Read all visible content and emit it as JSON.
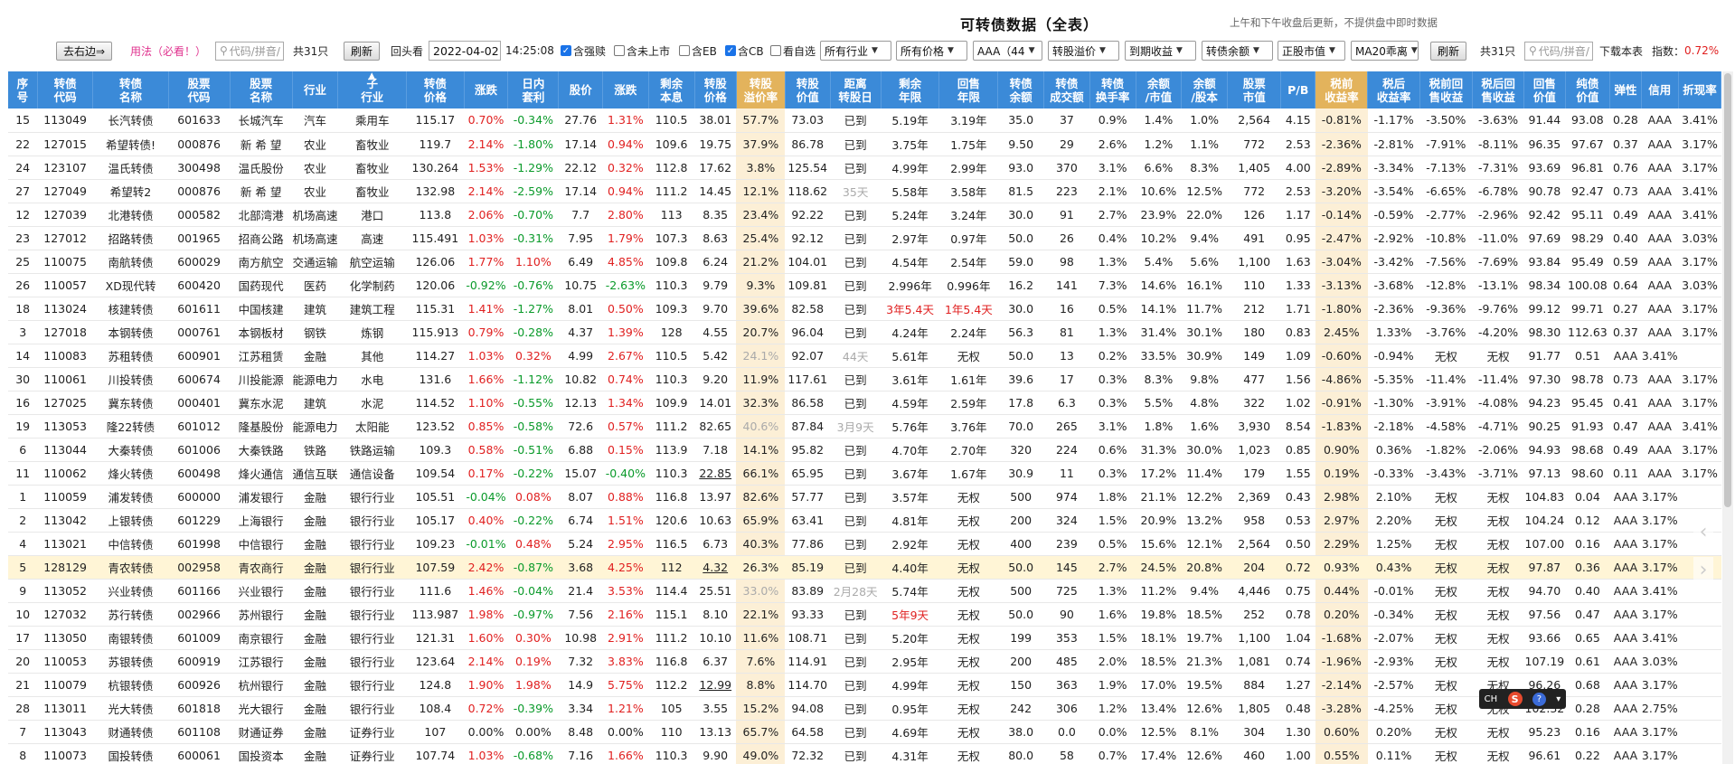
{
  "header": {
    "title": "可转债数据（全表）",
    "note": "上午和下午收盘后更新，不提供盘中即时数据"
  },
  "toolbar": {
    "toggle_label": "去右边⇒",
    "usage_label": "用法（必看！）",
    "search_placeholder": "代码/拼音/",
    "count_label": "共31只",
    "refresh_label": "刷新",
    "lookback_label": "回头看",
    "date_value": "2022-04-02",
    "time_value": "14:25:08",
    "checkboxes": [
      {
        "label": "含强赎",
        "checked": true
      },
      {
        "label": "含未上市",
        "checked": false
      },
      {
        "label": "含EB",
        "checked": false
      },
      {
        "label": "含CB",
        "checked": true
      },
      {
        "label": "看自选",
        "checked": false
      }
    ],
    "selects": [
      "所有行业",
      "所有价格",
      "AAA（44",
      "转股溢价",
      "到期收益",
      "转债余额",
      "正股市值",
      "MA20乖离"
    ],
    "refresh2_label": "刷新",
    "count2_label": "共31只",
    "search2_placeholder": "代码/拼音/",
    "download_label": "下载本表",
    "index_label": "指数：",
    "index_value": "0.72%",
    "index_color": "#e02020"
  },
  "columns": [
    [
      "序",
      "号"
    ],
    [
      "转债",
      "代码"
    ],
    [
      "转债",
      "名称"
    ],
    [
      "股票",
      "代码"
    ],
    [
      "股票",
      "名称"
    ],
    [
      "行业",
      ""
    ],
    [
      "子",
      "行业"
    ],
    [
      "转债",
      "价格"
    ],
    [
      "涨跌",
      ""
    ],
    [
      "日内",
      "套利"
    ],
    [
      "股价",
      ""
    ],
    [
      "涨跌",
      ""
    ],
    [
      "剩余",
      "本息"
    ],
    [
      "转股",
      "价格"
    ],
    [
      "转股",
      "溢价率"
    ],
    [
      "转股",
      "价值"
    ],
    [
      "距离",
      "转股日"
    ],
    [
      "剩余",
      "年限"
    ],
    [
      "回售",
      "年限"
    ],
    [
      "转债",
      "余额"
    ],
    [
      "转债",
      "成交额"
    ],
    [
      "转债",
      "换手率"
    ],
    [
      "余额",
      "/市值"
    ],
    [
      "余额",
      "/股本"
    ],
    [
      "股票",
      "市值"
    ],
    [
      "P/B",
      ""
    ],
    [
      "税前",
      "收益率"
    ],
    [
      "税后",
      "收益率"
    ],
    [
      "税前回",
      "售收益"
    ],
    [
      "税后回",
      "售收益"
    ],
    [
      "回售",
      "价值"
    ],
    [
      "纯债",
      "价值"
    ],
    [
      "弹性",
      ""
    ],
    [
      "信用",
      ""
    ],
    [
      "折现率",
      ""
    ]
  ],
  "rows": [
    [
      "15",
      "113049",
      "长汽转债",
      "601633",
      "长城汽车",
      "汽车",
      "乘用车",
      "115.17",
      "0.70%",
      "-0.34%",
      "27.76",
      "1.31%",
      "110.5",
      "38.01",
      "57.7%",
      "73.03",
      "已到",
      "5.19年",
      "3.19年",
      "35.0",
      "37",
      "0.9%",
      "1.4%",
      "1.0%",
      "2,564",
      "4.15",
      "-0.81%",
      "-1.17%",
      "-3.50%",
      "-3.63%",
      "91.44",
      "93.08",
      "0.28",
      "AAA",
      "3.41%"
    ],
    [
      "22",
      "127015",
      "希望转债!",
      "000876",
      "新 希 望",
      "农业",
      "畜牧业",
      "119.7",
      "2.14%",
      "-1.80%",
      "17.14",
      "0.94%",
      "109.6",
      "19.75",
      "37.9%",
      "86.78",
      "已到",
      "3.75年",
      "1.75年",
      "9.50",
      "29",
      "2.6%",
      "1.2%",
      "1.1%",
      "772",
      "2.53",
      "-2.36%",
      "-2.81%",
      "-7.91%",
      "-8.11%",
      "96.35",
      "97.67",
      "0.37",
      "AAA",
      "3.17%"
    ],
    [
      "24",
      "123107",
      "温氏转债",
      "300498",
      "温氏股份",
      "农业",
      "畜牧业",
      "130.264",
      "1.53%",
      "-1.29%",
      "22.12",
      "0.32%",
      "112.8",
      "17.62",
      "3.8%",
      "125.54",
      "已到",
      "4.99年",
      "2.99年",
      "93.0",
      "370",
      "3.1%",
      "6.6%",
      "8.3%",
      "1,405",
      "4.00",
      "-2.89%",
      "-3.34%",
      "-7.13%",
      "-7.31%",
      "93.69",
      "96.81",
      "0.76",
      "AAA",
      "3.17%"
    ],
    [
      "27",
      "127049",
      "希望转2",
      "000876",
      "新 希 望",
      "农业",
      "畜牧业",
      "132.98",
      "2.14%",
      "-2.59%",
      "17.14",
      "0.94%",
      "111.2",
      "14.45",
      "12.1%",
      "118.62",
      "35天",
      "5.58年",
      "3.58年",
      "81.5",
      "223",
      "2.1%",
      "10.6%",
      "12.5%",
      "772",
      "2.53",
      "-3.20%",
      "-3.54%",
      "-6.65%",
      "-6.78%",
      "90.78",
      "92.47",
      "0.73",
      "AAA",
      "3.41%"
    ],
    [
      "12",
      "127039",
      "北港转债",
      "000582",
      "北部湾港",
      "机场高速",
      "港口",
      "113.8",
      "2.06%",
      "-0.70%",
      "7.7",
      "2.80%",
      "113",
      "8.35",
      "23.4%",
      "92.22",
      "已到",
      "5.24年",
      "3.24年",
      "30.0",
      "91",
      "2.7%",
      "23.9%",
      "22.0%",
      "126",
      "1.17",
      "-0.14%",
      "-0.59%",
      "-2.77%",
      "-2.96%",
      "92.42",
      "95.11",
      "0.49",
      "AAA",
      "3.41%"
    ],
    [
      "23",
      "127012",
      "招路转债",
      "001965",
      "招商公路",
      "机场高速",
      "高速",
      "115.491",
      "1.03%",
      "-0.31%",
      "7.95",
      "1.79%",
      "107.3",
      "8.63",
      "25.4%",
      "92.12",
      "已到",
      "2.97年",
      "0.97年",
      "50.0",
      "26",
      "0.4%",
      "10.2%",
      "9.4%",
      "491",
      "0.95",
      "-2.47%",
      "-2.92%",
      "-10.8%",
      "-11.0%",
      "97.69",
      "98.29",
      "0.40",
      "AAA",
      "3.03%"
    ],
    [
      "25",
      "110075",
      "南航转债",
      "600029",
      "南方航空",
      "交通运输",
      "航空运输",
      "126.06",
      "1.77%",
      "1.10%",
      "6.49",
      "4.85%",
      "109.8",
      "6.24",
      "21.2%",
      "104.01",
      "已到",
      "4.54年",
      "2.54年",
      "59.0",
      "98",
      "1.3%",
      "5.4%",
      "5.6%",
      "1,100",
      "1.63",
      "-3.04%",
      "-3.42%",
      "-7.56%",
      "-7.69%",
      "93.84",
      "95.49",
      "0.59",
      "AAA",
      "3.17%"
    ],
    [
      "26",
      "110057",
      "XD现代转",
      "600420",
      "国药现代",
      "医药",
      "化学制药",
      "120.06",
      "-0.92%",
      "-0.76%",
      "10.75",
      "-2.63%",
      "110.3",
      "9.79",
      "9.3%",
      "109.81",
      "已到",
      "2.996年",
      "0.996年",
      "16.2",
      "141",
      "7.3%",
      "14.6%",
      "16.1%",
      "110",
      "1.33",
      "-3.13%",
      "-3.68%",
      "-12.8%",
      "-13.1%",
      "98.34",
      "100.08",
      "0.64",
      "AAA",
      "3.03%"
    ],
    [
      "18",
      "113024",
      "核建转债",
      "601611",
      "中国核建",
      "建筑",
      "建筑工程",
      "115.31",
      "1.41%",
      "-1.27%",
      "8.01",
      "0.50%",
      "109.3",
      "9.70",
      "39.6%",
      "82.58",
      "已到",
      "3年5.4天",
      "1年5.4天",
      "30.0",
      "16",
      "0.5%",
      "14.1%",
      "11.7%",
      "212",
      "1.71",
      "-1.80%",
      "-2.36%",
      "-9.36%",
      "-9.76%",
      "99.12",
      "99.71",
      "0.27",
      "AAA",
      "3.17%"
    ],
    [
      "3",
      "127018",
      "本钢转债",
      "000761",
      "本钢板材",
      "钢铁",
      "炼钢",
      "115.913",
      "0.79%",
      "-0.28%",
      "4.37",
      "1.39%",
      "128",
      "4.55",
      "20.7%",
      "96.04",
      "已到",
      "4.24年",
      "2.24年",
      "56.3",
      "81",
      "1.3%",
      "31.4%",
      "30.1%",
      "180",
      "0.83",
      "2.45%",
      "1.33%",
      "-3.76%",
      "-4.20%",
      "98.30",
      "112.63",
      "0.37",
      "AAA",
      "3.17%"
    ],
    [
      "14",
      "110083",
      "苏租转债",
      "600901",
      "江苏租赁",
      "金融",
      "其他",
      "114.27",
      "1.03%",
      "0.32%",
      "4.99",
      "2.67%",
      "110.5",
      "5.42",
      "24.1%",
      "92.07",
      "44天",
      "5.61年",
      "无权",
      "50.0",
      "13",
      "0.2%",
      "33.5%",
      "30.9%",
      "149",
      "1.09",
      "-0.60%",
      "-0.94%",
      "无权",
      "无权",
      "91.77",
      "0.51",
      "AAA",
      "3.41%",
      ""
    ],
    [
      "30",
      "110061",
      "川投转债",
      "600674",
      "川投能源",
      "能源电力",
      "水电",
      "131.6",
      "1.66%",
      "-1.12%",
      "10.82",
      "0.74%",
      "110.3",
      "9.20",
      "11.9%",
      "117.61",
      "已到",
      "3.61年",
      "1.61年",
      "39.6",
      "17",
      "0.3%",
      "8.3%",
      "9.8%",
      "477",
      "1.56",
      "-4.86%",
      "-5.35%",
      "-11.4%",
      "-11.4%",
      "97.30",
      "98.78",
      "0.73",
      "AAA",
      "3.17%"
    ],
    [
      "16",
      "127025",
      "冀东转债",
      "000401",
      "冀东水泥",
      "建筑",
      "水泥",
      "114.52",
      "1.10%",
      "-0.55%",
      "12.13",
      "1.34%",
      "109.9",
      "14.01",
      "32.3%",
      "86.58",
      "已到",
      "4.59年",
      "2.59年",
      "17.8",
      "6.3",
      "0.3%",
      "5.5%",
      "4.8%",
      "322",
      "1.02",
      "-0.91%",
      "-1.30%",
      "-3.91%",
      "-4.08%",
      "94.23",
      "95.45",
      "0.41",
      "AAA",
      "3.17%"
    ],
    [
      "19",
      "113053",
      "隆22转债",
      "601012",
      "隆基股份",
      "能源电力",
      "太阳能",
      "123.52",
      "0.85%",
      "-0.58%",
      "72.6",
      "0.57%",
      "111.2",
      "82.65",
      "40.6%",
      "87.84",
      "3月9天",
      "5.76年",
      "3.76年",
      "70.0",
      "265",
      "3.1%",
      "1.8%",
      "1.6%",
      "3,930",
      "8.54",
      "-1.83%",
      "-2.18%",
      "-4.58%",
      "-4.71%",
      "90.25",
      "91.93",
      "0.47",
      "AAA",
      "3.41%"
    ],
    [
      "6",
      "113044",
      "大秦转债",
      "601006",
      "大秦铁路",
      "铁路",
      "铁路运输",
      "109.3",
      "0.58%",
      "-0.51%",
      "6.88",
      "0.15%",
      "113.9",
      "7.18",
      "14.1%",
      "95.82",
      "已到",
      "4.70年",
      "2.70年",
      "320",
      "224",
      "0.6%",
      "31.3%",
      "30.0%",
      "1,023",
      "0.85",
      "0.90%",
      "0.36%",
      "-1.82%",
      "-2.06%",
      "94.93",
      "98.68",
      "0.49",
      "AAA",
      "3.17%"
    ],
    [
      "11",
      "110062",
      "烽火转债",
      "600498",
      "烽火通信",
      "通信互联",
      "通信设备",
      "109.54",
      "0.17%",
      "-0.22%",
      "15.07",
      "-0.40%",
      "110.3",
      "22.85",
      "66.1%",
      "65.95",
      "已到",
      "3.67年",
      "1.67年",
      "30.9",
      "11",
      "0.3%",
      "17.2%",
      "11.4%",
      "179",
      "1.55",
      "0.19%",
      "-0.33%",
      "-3.43%",
      "-3.71%",
      "97.13",
      "98.60",
      "0.11",
      "AAA",
      "3.17%"
    ],
    [
      "1",
      "110059",
      "浦发转债",
      "600000",
      "浦发银行",
      "金融",
      "银行行业",
      "105.51",
      "-0.04%",
      "0.08%",
      "8.07",
      "0.88%",
      "116.8",
      "13.97",
      "82.6%",
      "57.77",
      "已到",
      "3.57年",
      "无权",
      "500",
      "974",
      "1.8%",
      "21.1%",
      "12.2%",
      "2,369",
      "0.43",
      "2.98%",
      "2.10%",
      "无权",
      "无权",
      "104.83",
      "0.04",
      "AAA",
      "3.17%",
      ""
    ],
    [
      "2",
      "113042",
      "上银转债",
      "601229",
      "上海银行",
      "金融",
      "银行行业",
      "105.17",
      "0.40%",
      "-0.22%",
      "6.74",
      "1.51%",
      "120.6",
      "10.63",
      "65.9%",
      "63.41",
      "已到",
      "4.81年",
      "无权",
      "200",
      "324",
      "1.5%",
      "20.9%",
      "13.2%",
      "958",
      "0.53",
      "2.97%",
      "2.20%",
      "无权",
      "无权",
      "104.24",
      "0.12",
      "AAA",
      "3.17%",
      ""
    ],
    [
      "4",
      "113021",
      "中信转债",
      "601998",
      "中信银行",
      "金融",
      "银行行业",
      "109.23",
      "-0.01%",
      "0.48%",
      "5.24",
      "2.95%",
      "116.5",
      "6.73",
      "40.3%",
      "77.86",
      "已到",
      "2.92年",
      "无权",
      "400",
      "239",
      "0.5%",
      "15.6%",
      "12.1%",
      "2,564",
      "0.50",
      "2.29%",
      "1.25%",
      "无权",
      "无权",
      "107.00",
      "0.16",
      "AAA",
      "3.17%",
      ""
    ],
    [
      "5",
      "128129",
      "青农转债",
      "002958",
      "青农商行",
      "金融",
      "银行行业",
      "107.59",
      "2.42%",
      "-0.87%",
      "3.68",
      "4.25%",
      "112",
      "4.32",
      "26.3%",
      "85.19",
      "已到",
      "4.40年",
      "无权",
      "50.0",
      "145",
      "2.7%",
      "24.5%",
      "20.8%",
      "204",
      "0.72",
      "0.93%",
      "0.43%",
      "无权",
      "无权",
      "97.87",
      "0.36",
      "AAA",
      "3.17%",
      ""
    ],
    [
      "9",
      "113052",
      "兴业转债",
      "601166",
      "兴业银行",
      "金融",
      "银行行业",
      "111.6",
      "1.46%",
      "-0.04%",
      "21.4",
      "3.53%",
      "114.4",
      "25.51",
      "33.0%",
      "83.89",
      "2月28天",
      "5.74年",
      "无权",
      "500",
      "725",
      "1.3%",
      "11.2%",
      "9.4%",
      "4,446",
      "0.75",
      "0.44%",
      "-0.01%",
      "无权",
      "无权",
      "94.70",
      "0.40",
      "AAA",
      "3.41%",
      ""
    ],
    [
      "10",
      "127032",
      "苏行转债",
      "002966",
      "苏州银行",
      "金融",
      "银行行业",
      "113.987",
      "1.98%",
      "-0.97%",
      "7.56",
      "2.16%",
      "115.1",
      "8.10",
      "22.1%",
      "93.33",
      "已到",
      "5年9天",
      "无权",
      "50.0",
      "90",
      "1.6%",
      "19.8%",
      "18.5%",
      "252",
      "0.78",
      "0.20%",
      "-0.34%",
      "无权",
      "无权",
      "97.56",
      "0.47",
      "AAA",
      "3.17%",
      ""
    ],
    [
      "17",
      "113050",
      "南银转债",
      "601009",
      "南京银行",
      "金融",
      "银行行业",
      "121.31",
      "1.60%",
      "0.30%",
      "10.98",
      "2.91%",
      "111.2",
      "10.10",
      "11.6%",
      "108.71",
      "已到",
      "5.20年",
      "无权",
      "199",
      "353",
      "1.5%",
      "18.1%",
      "19.7%",
      "1,100",
      "1.04",
      "-1.68%",
      "-2.07%",
      "无权",
      "无权",
      "93.66",
      "0.65",
      "AAA",
      "3.41%",
      ""
    ],
    [
      "20",
      "110053",
      "苏银转债",
      "600919",
      "江苏银行",
      "金融",
      "银行行业",
      "123.64",
      "2.14%",
      "0.19%",
      "7.32",
      "3.83%",
      "116.8",
      "6.37",
      "7.6%",
      "114.91",
      "已到",
      "2.95年",
      "无权",
      "200",
      "485",
      "2.0%",
      "18.5%",
      "21.3%",
      "1,081",
      "0.74",
      "-1.96%",
      "-2.93%",
      "无权",
      "无权",
      "107.19",
      "0.61",
      "AAA",
      "3.03%",
      ""
    ],
    [
      "21",
      "110079",
      "杭银转债",
      "600926",
      "杭州银行",
      "金融",
      "银行行业",
      "124.8",
      "1.90%",
      "1.98%",
      "14.9",
      "5.75%",
      "112.2",
      "12.99",
      "8.8%",
      "114.70",
      "已到",
      "4.99年",
      "无权",
      "150",
      "363",
      "1.9%",
      "17.0%",
      "19.5%",
      "884",
      "1.27",
      "-2.14%",
      "-2.57%",
      "无权",
      "无权",
      "96.26",
      "0.68",
      "AAA",
      "3.17%",
      ""
    ],
    [
      "28",
      "113011",
      "光大转债",
      "601818",
      "光大银行",
      "金融",
      "银行行业",
      "108.4",
      "0.72%",
      "-0.39%",
      "3.34",
      "1.21%",
      "105",
      "3.55",
      "15.2%",
      "94.08",
      "已到",
      "0.95年",
      "无权",
      "242",
      "306",
      "1.2%",
      "13.4%",
      "12.6%",
      "1,805",
      "0.48",
      "-3.28%",
      "-4.25%",
      "无权",
      "无权",
      "102.32",
      "0.28",
      "AAA",
      "2.75%",
      ""
    ],
    [
      "7",
      "113043",
      "财通转债",
      "601108",
      "财通证券",
      "金融",
      "证券行业",
      "107",
      "0.00%",
      "0.00%",
      "8.48",
      "0.00%",
      "110",
      "13.13",
      "65.7%",
      "64.58",
      "已到",
      "4.69年",
      "无权",
      "38.0",
      "0.0",
      "0.0%",
      "12.5%",
      "8.1%",
      "304",
      "1.30",
      "0.60%",
      "0.20%",
      "无权",
      "无权",
      "95.23",
      "0.16",
      "AAA",
      "3.17%",
      ""
    ],
    [
      "8",
      "110073",
      "国投转债",
      "600061",
      "国投资本",
      "金融",
      "证券行业",
      "107.74",
      "1.03%",
      "-0.68%",
      "7.16",
      "1.66%",
      "110.3",
      "9.90",
      "49.0%",
      "72.32",
      "已到",
      "4.31年",
      "无权",
      "80.0",
      "58",
      "0.7%",
      "17.4%",
      "12.6%",
      "460",
      "1.00",
      "0.55%",
      "0.11%",
      "无权",
      "无权",
      "96.61",
      "0.22",
      "AAA",
      "3.17%",
      ""
    ]
  ],
  "selected_row": 19,
  "colors": {
    "header_bg": "#3b8ad8",
    "highlight_col": "#fcefd6",
    "up": "#e02020",
    "down": "#0a9a2a"
  },
  "overlay": {
    "ime_label": "CH",
    "ime_s": "S",
    "ime_q": "?"
  }
}
